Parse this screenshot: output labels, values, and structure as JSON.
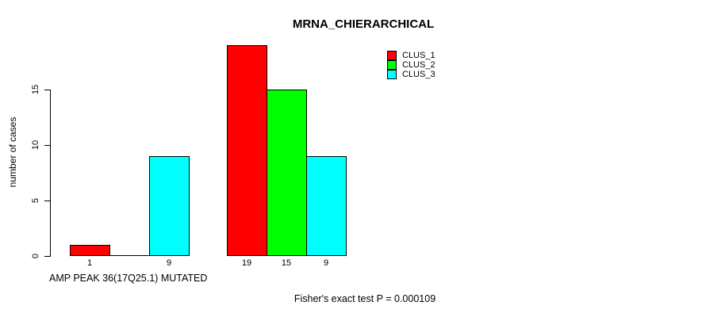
{
  "window": {
    "background": "#ffffff"
  },
  "chart_data": {
    "type": "bar",
    "title": "MRNA_CHIERARCHICAL",
    "ylabel": "number of cases",
    "xlabel": "AMP PEAK 36(17Q25.1) MUTATED",
    "footnote": "Fisher's exact test P = 0.000109",
    "series": [
      {
        "name": "CLUS_1",
        "color": "#ff0000",
        "values": [
          1,
          19
        ]
      },
      {
        "name": "CLUS_2",
        "color": "#00ff00",
        "values": [
          0,
          15
        ]
      },
      {
        "name": "CLUS_3",
        "color": "#00ffff",
        "values": [
          9,
          9
        ]
      }
    ],
    "bar_labels": [
      [
        "1",
        "",
        "9"
      ],
      [
        "19",
        "15",
        "9"
      ]
    ],
    "yticks": [
      0,
      5,
      10,
      15
    ],
    "ylim": [
      0,
      19
    ],
    "grid": false,
    "legend_position": "top-right",
    "axis_color": "#000000"
  }
}
